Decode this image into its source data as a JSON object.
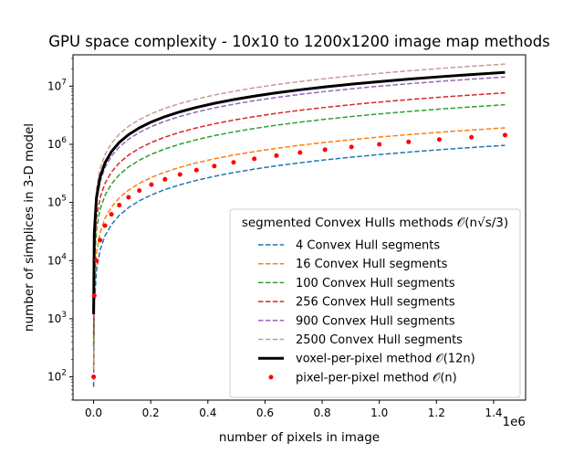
{
  "chart_data": {
    "type": "line",
    "title": "GPU space complexity - 10x10 to 1200x1200 image map methods",
    "xlabel": "number of pixels in image",
    "ylabel": "number of simplices in 3-D model",
    "x_offset_label": "1e6",
    "xlim": [
      -0.072,
      1.512
    ],
    "ylim_log10": [
      1.6,
      7.54
    ],
    "yscale": "log",
    "x_ticks": [
      {
        "value": 0.0,
        "label": "0.0"
      },
      {
        "value": 0.2,
        "label": "0.2"
      },
      {
        "value": 0.4,
        "label": "0.4"
      },
      {
        "value": 0.6,
        "label": "0.6"
      },
      {
        "value": 0.8,
        "label": "0.8"
      },
      {
        "value": 1.0,
        "label": "1.0"
      },
      {
        "value": 1.2,
        "label": "1.2"
      },
      {
        "value": 1.4,
        "label": "1.4"
      }
    ],
    "y_ticks": [
      {
        "exp": 2,
        "base": "10",
        "exponent": "2"
      },
      {
        "exp": 3,
        "base": "10",
        "exponent": "3"
      },
      {
        "exp": 4,
        "base": "10",
        "exponent": "4"
      },
      {
        "exp": 5,
        "base": "10",
        "exponent": "5"
      },
      {
        "exp": 6,
        "base": "10",
        "exponent": "6"
      },
      {
        "exp": 7,
        "base": "10",
        "exponent": "7"
      }
    ],
    "legend": {
      "title": "segmented Convex Hulls methods 𝒪(n√s/3)",
      "location": "lower-right"
    },
    "x": [
      0.0001,
      0.0025,
      0.01,
      0.0225,
      0.04,
      0.0625,
      0.09,
      0.1225,
      0.16,
      0.2025,
      0.25,
      0.3025,
      0.36,
      0.4225,
      0.49,
      0.5625,
      0.64,
      0.7225,
      0.81,
      0.9025,
      1.0,
      1.1025,
      1.21,
      1.3225,
      1.44
    ],
    "series": [
      {
        "name": "4 Convex Hull segments",
        "color": "#1f77b4",
        "style": "dashed",
        "values": [
          67,
          1667,
          6667,
          15000,
          26667,
          41667,
          60000,
          81667,
          106667,
          135000,
          166667,
          201667,
          240000,
          281667,
          326667,
          375000,
          426667,
          481667,
          540000,
          601667,
          666667,
          735000,
          806667,
          881667,
          960000
        ]
      },
      {
        "name": "16 Convex Hull segments",
        "color": "#ff7f0e",
        "style": "dashed",
        "values": [
          133,
          3333,
          13333,
          30000,
          53333,
          83333,
          120000,
          163333,
          213333,
          270000,
          333333,
          403333,
          480000,
          563333,
          653333,
          750000,
          853333,
          963333,
          1080000,
          1203333,
          1333333,
          1470000,
          1613333,
          1763333,
          1920000
        ]
      },
      {
        "name": "100 Convex Hull segments",
        "color": "#2ca02c",
        "style": "dashed",
        "values": [
          333,
          8333,
          33333,
          75000,
          133333,
          208333,
          300000,
          408333,
          533333,
          675000,
          833333,
          1008333,
          1200000,
          1408333,
          1633333,
          1875000,
          2133333,
          2408333,
          2700000,
          3008333,
          3333333,
          3675000,
          4033333,
          4408333,
          4800000
        ]
      },
      {
        "name": "256 Convex Hull segments",
        "color": "#d62728",
        "style": "dashed",
        "values": [
          533,
          13333,
          53333,
          120000,
          213333,
          333333,
          480000,
          653333,
          853333,
          1080000,
          1333333,
          1613333,
          1920000,
          2253333,
          2613333,
          3000000,
          3413333,
          3853333,
          4320000,
          4813333,
          5333333,
          5880000,
          6453333,
          7053333,
          7680000
        ]
      },
      {
        "name": "900 Convex Hull segments",
        "color": "#9467bd",
        "style": "dashed",
        "values": [
          1000,
          25000,
          100000,
          225000,
          400000,
          625000,
          900000,
          1225000,
          1600000,
          2025000,
          2500000,
          3025000,
          3600000,
          4225000,
          4900000,
          5625000,
          6400000,
          7225000,
          8100000,
          9025000,
          10000000,
          11025000,
          12100000,
          13225000,
          14400000
        ]
      },
      {
        "name": "2500 Convex Hull segments",
        "color": "#c49c94",
        "style": "dashed",
        "values": [
          1667,
          41667,
          166667,
          375000,
          666667,
          1041667,
          1500000,
          2041667,
          2666667,
          3375000,
          4166667,
          5041667,
          6000000,
          7041667,
          8166667,
          9375000,
          10666667,
          12041667,
          13500000,
          15041667,
          16666667,
          18375000,
          20166667,
          22041667,
          24000000
        ]
      },
      {
        "name": "voxel-per-pixel method 𝒪(12n)",
        "color": "#000000",
        "style": "solid",
        "values": [
          1200,
          30000,
          120000,
          270000,
          480000,
          750000,
          1080000,
          1470000,
          1920000,
          2430000,
          3000000,
          3630000,
          4320000,
          5070000,
          5880000,
          6750000,
          7680000,
          8670000,
          9720000,
          10830000,
          12000000,
          13230000,
          14520000,
          15870000,
          17280000
        ]
      },
      {
        "name": "pixel-per-pixel method 𝒪(n)",
        "color": "#ff0000",
        "style": "dots",
        "values": [
          100,
          2500,
          10000,
          22500,
          40000,
          62500,
          90000,
          122500,
          160000,
          202500,
          250000,
          302500,
          360000,
          422500,
          490000,
          562500,
          640000,
          722500,
          810000,
          902500,
          1000000,
          1102500,
          1210000,
          1322500,
          1440000
        ]
      }
    ]
  }
}
